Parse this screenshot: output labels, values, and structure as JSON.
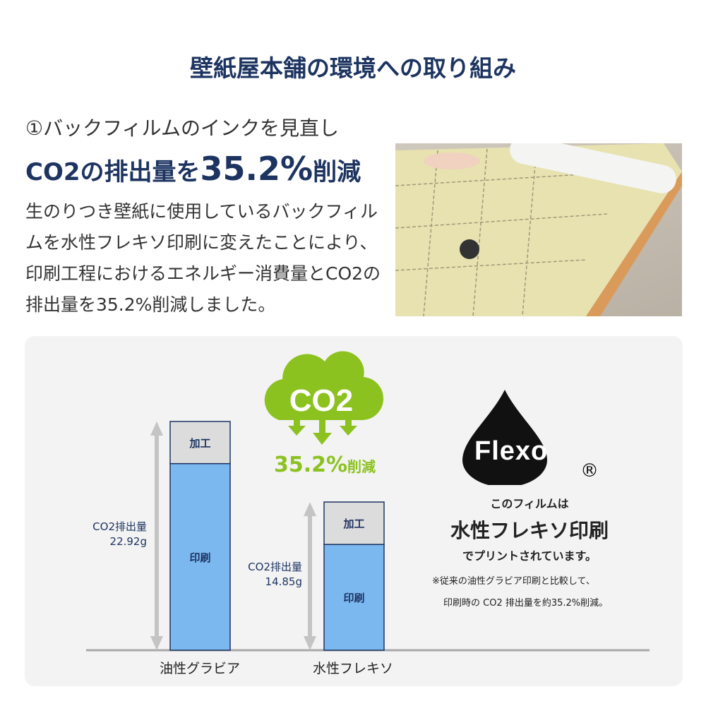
{
  "title": "壁紙屋本舗の環境への取り組み",
  "section": {
    "subtitle": "①バックフィルムのインクを見直し",
    "headline_pre": "CO2の排出量を",
    "headline_num": "35.2%",
    "headline_post": "削減",
    "body": "生のりつき壁紙に使用しているバックフィルムを水性フレキソ印刷に変えたことにより、印刷工程におけるエネルギー消費量とCO2の排出量を35.2%削減しました。"
  },
  "cloud": {
    "label": "CO2",
    "reduction": "35.2%",
    "reduction_suffix": "削減",
    "color": "#8cc220"
  },
  "flexo": {
    "logo": "Flexo",
    "registered": "®",
    "line1": "このフィルムは",
    "line2": "水性フレキソ印刷",
    "line3": "でプリントされています。",
    "note1": "※従来の油性グラビア印刷と比較して、",
    "note2": "印刷時の CO2 排出量を約35.2%削減。"
  },
  "chart_data": {
    "type": "bar",
    "stacked": true,
    "categories": [
      "油性グラビア",
      "水性フレキソ"
    ],
    "series": [
      {
        "name": "印刷",
        "values": [
          18.7,
          10.6
        ],
        "color": "#7cb8f0"
      },
      {
        "name": "加工",
        "values": [
          4.22,
          4.25
        ],
        "color": "#dcdcdc"
      }
    ],
    "totals": [
      22.92,
      14.85
    ],
    "total_labels": [
      [
        "CO2排出量",
        "22.92g"
      ],
      [
        "CO2排出量",
        "14.85g"
      ]
    ],
    "ylim": [
      0,
      22.92
    ]
  }
}
